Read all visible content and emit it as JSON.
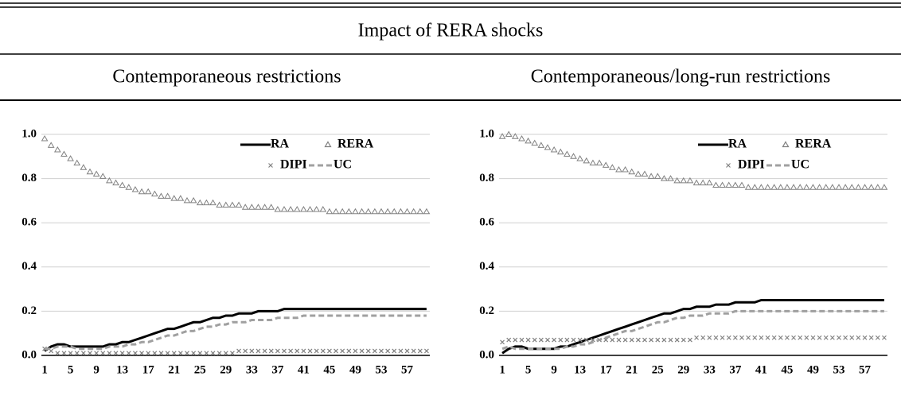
{
  "title": "Impact of RERA shocks",
  "chart_data": [
    {
      "type": "line",
      "title": "Contemporaneous restrictions",
      "categories": [
        1,
        null,
        null,
        null,
        5,
        null,
        null,
        null,
        9,
        null,
        null,
        null,
        13,
        null,
        null,
        null,
        17,
        null,
        null,
        null,
        21,
        null,
        null,
        null,
        25,
        null,
        null,
        null,
        29,
        null,
        null,
        null,
        33,
        null,
        null,
        null,
        37,
        null,
        null,
        null,
        41,
        null,
        null,
        null,
        45,
        null,
        null,
        null,
        49,
        null,
        null,
        null,
        53,
        null,
        null,
        null,
        57,
        null,
        null,
        null
      ],
      "ylim": [
        0,
        1
      ],
      "yticks": [
        {
          "value": 0,
          "label": "0.0"
        },
        0.2,
        0.4,
        0.6,
        0.8,
        {
          "value": 1,
          "label": "1.0"
        }
      ],
      "grid": true,
      "legend": "upper right",
      "series": [
        {
          "name": "RA",
          "color": "#000000",
          "style": "solid",
          "values": [
            0.02,
            0.04,
            0.05,
            0.05,
            0.04,
            0.04,
            0.04,
            0.04,
            0.04,
            0.04,
            0.05,
            0.05,
            0.06,
            0.06,
            0.07,
            0.08,
            0.09,
            0.1,
            0.11,
            0.12,
            0.12,
            0.13,
            0.14,
            0.15,
            0.15,
            0.16,
            0.17,
            0.17,
            0.18,
            0.18,
            0.19,
            0.19,
            0.19,
            0.2,
            0.2,
            0.2,
            0.2,
            0.21,
            0.21,
            0.21,
            0.21,
            0.21,
            0.21,
            0.21,
            0.21,
            0.21,
            0.21,
            0.21,
            0.21,
            0.21,
            0.21,
            0.21,
            0.21,
            0.21,
            0.21,
            0.21,
            0.21,
            0.21,
            0.21,
            0.21
          ]
        },
        {
          "name": "RERA",
          "color": "#808080",
          "style": "triangle",
          "values": [
            0.98,
            0.95,
            0.93,
            0.91,
            0.89,
            0.87,
            0.85,
            0.83,
            0.82,
            0.81,
            0.79,
            0.78,
            0.77,
            0.76,
            0.75,
            0.74,
            0.74,
            0.73,
            0.72,
            0.72,
            0.71,
            0.71,
            0.7,
            0.7,
            0.69,
            0.69,
            0.69,
            0.68,
            0.68,
            0.68,
            0.68,
            0.67,
            0.67,
            0.67,
            0.67,
            0.67,
            0.66,
            0.66,
            0.66,
            0.66,
            0.66,
            0.66,
            0.66,
            0.66,
            0.65,
            0.65,
            0.65,
            0.65,
            0.65,
            0.65,
            0.65,
            0.65,
            0.65,
            0.65,
            0.65,
            0.65,
            0.65,
            0.65,
            0.65,
            0.65
          ]
        },
        {
          "name": "DIPI",
          "color": "#808080",
          "style": "cross",
          "values": [
            0.03,
            0.02,
            0.01,
            0.01,
            0.01,
            0.01,
            0.01,
            0.01,
            0.01,
            0.01,
            0.01,
            0.01,
            0.01,
            0.01,
            0.01,
            0.01,
            0.01,
            0.01,
            0.01,
            0.01,
            0.01,
            0.01,
            0.01,
            0.01,
            0.01,
            0.01,
            0.01,
            0.01,
            0.01,
            0.01,
            0.02,
            0.02,
            0.02,
            0.02,
            0.02,
            0.02,
            0.02,
            0.02,
            0.02,
            0.02,
            0.02,
            0.02,
            0.02,
            0.02,
            0.02,
            0.02,
            0.02,
            0.02,
            0.02,
            0.02,
            0.02,
            0.02,
            0.02,
            0.02,
            0.02,
            0.02,
            0.02,
            0.02,
            0.02,
            0.02
          ]
        },
        {
          "name": "UC",
          "color": "#a0a0a0",
          "style": "dashed",
          "values": [
            0.03,
            0.03,
            0.04,
            0.04,
            0.04,
            0.03,
            0.03,
            0.03,
            0.03,
            0.03,
            0.04,
            0.04,
            0.04,
            0.05,
            0.05,
            0.06,
            0.06,
            0.07,
            0.08,
            0.09,
            0.09,
            0.1,
            0.11,
            0.11,
            0.12,
            0.13,
            0.13,
            0.14,
            0.14,
            0.15,
            0.15,
            0.15,
            0.16,
            0.16,
            0.16,
            0.16,
            0.17,
            0.17,
            0.17,
            0.17,
            0.18,
            0.18,
            0.18,
            0.18,
            0.18,
            0.18,
            0.18,
            0.18,
            0.18,
            0.18,
            0.18,
            0.18,
            0.18,
            0.18,
            0.18,
            0.18,
            0.18,
            0.18,
            0.18,
            0.18
          ]
        }
      ]
    },
    {
      "type": "line",
      "title": "Contemporaneous/long-run restrictions",
      "categories": [
        1,
        null,
        null,
        null,
        5,
        null,
        null,
        null,
        9,
        null,
        null,
        null,
        13,
        null,
        null,
        null,
        17,
        null,
        null,
        null,
        21,
        null,
        null,
        null,
        25,
        null,
        null,
        null,
        29,
        null,
        null,
        null,
        33,
        null,
        null,
        null,
        37,
        null,
        null,
        null,
        41,
        null,
        null,
        null,
        45,
        null,
        null,
        null,
        49,
        null,
        null,
        null,
        53,
        null,
        null,
        null,
        57,
        null,
        null,
        null
      ],
      "ylim": [
        0,
        1
      ],
      "yticks": [
        {
          "value": 0,
          "label": "0.0"
        },
        0.2,
        0.4,
        0.6,
        0.8,
        {
          "value": 1,
          "label": "1.0"
        }
      ],
      "grid": true,
      "legend": "upper right",
      "series": [
        {
          "name": "RA",
          "color": "#000000",
          "style": "solid",
          "values": [
            0.01,
            0.03,
            0.04,
            0.04,
            0.03,
            0.03,
            0.03,
            0.03,
            0.03,
            0.04,
            0.04,
            0.05,
            0.06,
            0.07,
            0.08,
            0.09,
            0.1,
            0.11,
            0.12,
            0.13,
            0.14,
            0.15,
            0.16,
            0.17,
            0.18,
            0.19,
            0.19,
            0.2,
            0.21,
            0.21,
            0.22,
            0.22,
            0.22,
            0.23,
            0.23,
            0.23,
            0.24,
            0.24,
            0.24,
            0.24,
            0.25,
            0.25,
            0.25,
            0.25,
            0.25,
            0.25,
            0.25,
            0.25,
            0.25,
            0.25,
            0.25,
            0.25,
            0.25,
            0.25,
            0.25,
            0.25,
            0.25,
            0.25,
            0.25,
            0.25
          ]
        },
        {
          "name": "RERA",
          "color": "#808080",
          "style": "triangle",
          "values": [
            0.99,
            1.0,
            0.99,
            0.98,
            0.97,
            0.96,
            0.95,
            0.94,
            0.93,
            0.92,
            0.91,
            0.9,
            0.89,
            0.88,
            0.87,
            0.87,
            0.86,
            0.85,
            0.84,
            0.84,
            0.83,
            0.82,
            0.82,
            0.81,
            0.81,
            0.8,
            0.8,
            0.79,
            0.79,
            0.79,
            0.78,
            0.78,
            0.78,
            0.77,
            0.77,
            0.77,
            0.77,
            0.77,
            0.76,
            0.76,
            0.76,
            0.76,
            0.76,
            0.76,
            0.76,
            0.76,
            0.76,
            0.76,
            0.76,
            0.76,
            0.76,
            0.76,
            0.76,
            0.76,
            0.76,
            0.76,
            0.76,
            0.76,
            0.76,
            0.76
          ]
        },
        {
          "name": "DIPI",
          "color": "#808080",
          "style": "cross",
          "values": [
            0.06,
            0.07,
            0.07,
            0.07,
            0.07,
            0.07,
            0.07,
            0.07,
            0.07,
            0.07,
            0.07,
            0.07,
            0.07,
            0.07,
            0.07,
            0.07,
            0.07,
            0.07,
            0.07,
            0.07,
            0.07,
            0.07,
            0.07,
            0.07,
            0.07,
            0.07,
            0.07,
            0.07,
            0.07,
            0.07,
            0.08,
            0.08,
            0.08,
            0.08,
            0.08,
            0.08,
            0.08,
            0.08,
            0.08,
            0.08,
            0.08,
            0.08,
            0.08,
            0.08,
            0.08,
            0.08,
            0.08,
            0.08,
            0.08,
            0.08,
            0.08,
            0.08,
            0.08,
            0.08,
            0.08,
            0.08,
            0.08,
            0.08,
            0.08,
            0.08
          ]
        },
        {
          "name": "UC",
          "color": "#a0a0a0",
          "style": "dashed",
          "values": [
            0.03,
            0.04,
            0.03,
            0.03,
            0.03,
            0.03,
            0.03,
            0.03,
            0.03,
            0.03,
            0.04,
            0.04,
            0.05,
            0.05,
            0.06,
            0.07,
            0.08,
            0.09,
            0.1,
            0.11,
            0.11,
            0.12,
            0.13,
            0.14,
            0.15,
            0.15,
            0.16,
            0.17,
            0.17,
            0.18,
            0.18,
            0.18,
            0.19,
            0.19,
            0.19,
            0.19,
            0.2,
            0.2,
            0.2,
            0.2,
            0.2,
            0.2,
            0.2,
            0.2,
            0.2,
            0.2,
            0.2,
            0.2,
            0.2,
            0.2,
            0.2,
            0.2,
            0.2,
            0.2,
            0.2,
            0.2,
            0.2,
            0.2,
            0.2,
            0.2
          ]
        }
      ]
    }
  ]
}
